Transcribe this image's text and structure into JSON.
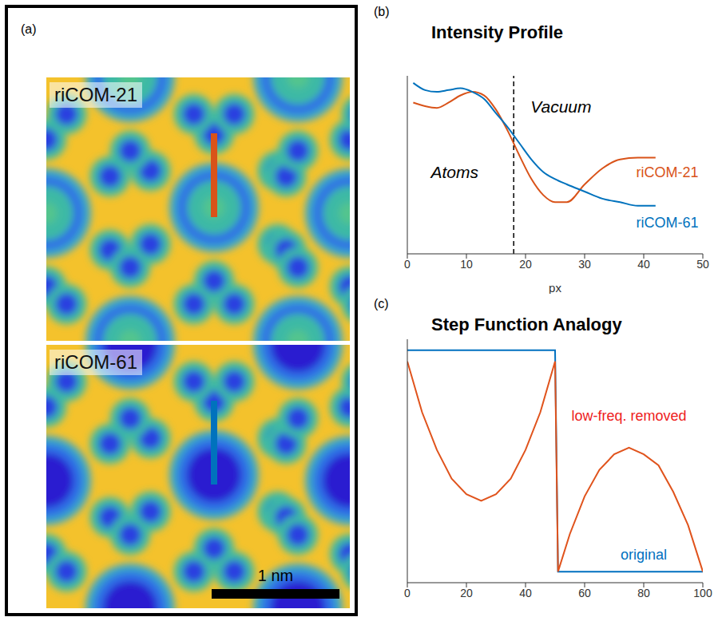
{
  "panel_a": {
    "label": "(a)",
    "images": [
      {
        "title": "riCOM-21",
        "color": "#d95319"
      },
      {
        "title": "riCOM-61",
        "color": "#0072bd"
      }
    ],
    "scale_bar": "1 nm"
  },
  "chart_data": [
    {
      "label": "(b)",
      "type": "line",
      "title": "Intensity Profile",
      "x_label": "px",
      "x": [
        1,
        3,
        5,
        7,
        9,
        11,
        13,
        15,
        17,
        19,
        21,
        23,
        25,
        27,
        30,
        33,
        36,
        39,
        42
      ],
      "series": [
        {
          "name": "riCOM-21",
          "color": "#d95319",
          "label_at": [
            44,
            0.45
          ],
          "values": [
            0.85,
            0.83,
            0.82,
            0.85,
            0.89,
            0.91,
            0.89,
            0.81,
            0.69,
            0.55,
            0.42,
            0.33,
            0.29,
            0.29,
            0.39,
            0.48,
            0.53,
            0.54,
            0.54
          ]
        },
        {
          "name": "riCOM-61",
          "color": "#0072bd",
          "label_at": [
            44,
            0.17
          ],
          "values": [
            0.96,
            0.92,
            0.91,
            0.92,
            0.93,
            0.91,
            0.87,
            0.79,
            0.71,
            0.62,
            0.53,
            0.46,
            0.42,
            0.39,
            0.35,
            0.31,
            0.29,
            0.27,
            0.27
          ]
        }
      ],
      "xlim": [
        0,
        50
      ],
      "xticks": [
        0,
        10,
        20,
        30,
        40,
        50
      ],
      "ylim": [
        0,
        1
      ],
      "yticks": [],
      "tick_labels": "x",
      "reference_lines": [
        {
          "x": 18,
          "line_style": "dashed"
        }
      ],
      "annotations": [
        {
          "text": "Atoms",
          "x": 8,
          "y": 0.45
        },
        {
          "text": "Vacuum",
          "x": 26,
          "y": 0.82
        }
      ]
    },
    {
      "label": "(c)",
      "type": "line",
      "title": "Step Function Analogy",
      "x": [
        0,
        5,
        10,
        15,
        20,
        25,
        30,
        35,
        40,
        45,
        50,
        51,
        55,
        60,
        65,
        70,
        75,
        80,
        85,
        90,
        95,
        100
      ],
      "series": [
        {
          "name": "original",
          "color": "#0070c0",
          "label_at": [
            80,
            0.07
          ],
          "values": [
            1,
            1,
            1,
            1,
            1,
            1,
            1,
            1,
            1,
            1,
            1,
            0,
            0,
            0,
            0,
            0,
            0,
            0,
            0,
            0,
            0,
            0
          ]
        },
        {
          "name": "low-freq. removed",
          "color": "#e0531c",
          "label_color": "#ee1c1c",
          "label_at": [
            75,
            0.7
          ],
          "values": [
            0.95,
            0.72,
            0.55,
            0.42,
            0.35,
            0.32,
            0.35,
            0.42,
            0.55,
            0.72,
            0.95,
            0,
            0.17,
            0.34,
            0.46,
            0.53,
            0.56,
            0.53,
            0.48,
            0.36,
            0.21,
            0
          ]
        }
      ],
      "xlim": [
        0,
        100
      ],
      "xticks": [
        0,
        20,
        40,
        60,
        80,
        100
      ],
      "ylim": [
        -0.05,
        1.05
      ],
      "yticks": [],
      "tick_labels": "x"
    }
  ]
}
